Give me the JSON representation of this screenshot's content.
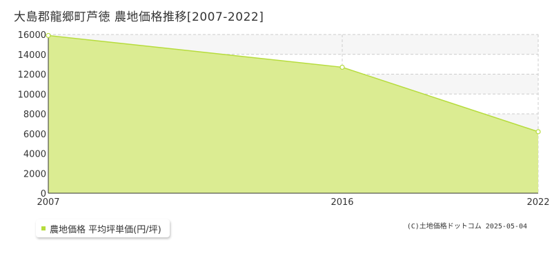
{
  "title": "大島郡龍郷町芦徳 農地価格推移[2007-2022]",
  "legend_label": "農地価格 平均坪単価(円/坪)",
  "copyright": "(C)土地価格ドットコム 2025-05-04",
  "colors": {
    "area_fill": "#dbec92",
    "line": "#b6dc3c",
    "grid": "#cccccc",
    "band": "#f6f6f6",
    "axis": "#333333"
  },
  "chart_data": {
    "type": "area",
    "x": [
      2007,
      2016,
      2022
    ],
    "x_tick_labels": [
      "2007",
      "2016",
      "2022"
    ],
    "series": [
      {
        "name": "農地価格 平均坪単価(円/坪)",
        "values": [
          15900,
          12700,
          6200
        ]
      }
    ],
    "ylim": [
      0,
      16000
    ],
    "y_ticks": [
      0,
      2000,
      4000,
      6000,
      8000,
      10000,
      12000,
      14000,
      16000
    ],
    "xlim": [
      2007,
      2022
    ],
    "grid": true,
    "legend_position": "bottom-left"
  }
}
